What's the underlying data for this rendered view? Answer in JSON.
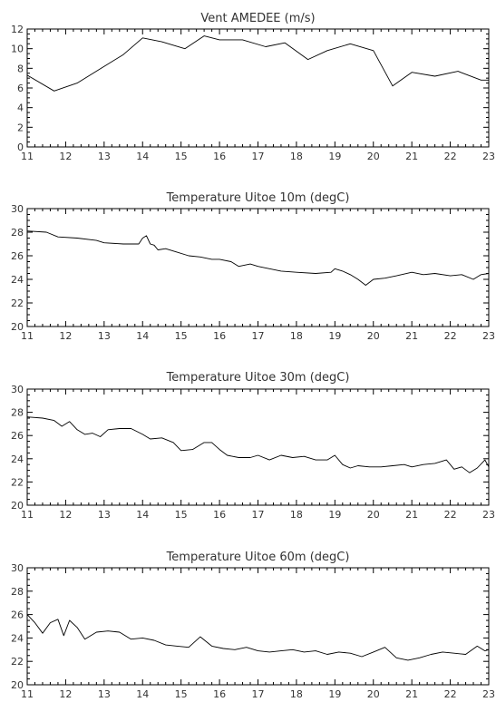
{
  "chart_data": [
    {
      "type": "line",
      "title": "Vent AMEDEE (m/s)",
      "xlabel": "",
      "ylabel": "",
      "xlim": [
        11,
        23
      ],
      "ylim": [
        0,
        12
      ],
      "xticks": [
        "11",
        "12",
        "13",
        "14",
        "15",
        "16",
        "17",
        "18",
        "19",
        "20",
        "21",
        "22",
        "23"
      ],
      "yticks": [
        "0",
        "2",
        "4",
        "6",
        "8",
        "10",
        "12"
      ],
      "grid": false,
      "series": [
        {
          "x": [
            11.0,
            11.7,
            12.3,
            13.0,
            13.5,
            14.0,
            14.5,
            15.1,
            15.6,
            16.0,
            16.6,
            17.2,
            17.7,
            18.3,
            18.8,
            19.4,
            20.0,
            20.5,
            21.0,
            21.6,
            22.2,
            22.8,
            23.0
          ],
          "y": [
            7.3,
            5.7,
            6.5,
            8.2,
            9.4,
            11.1,
            10.7,
            10.0,
            11.3,
            10.9,
            10.9,
            10.2,
            10.6,
            8.9,
            9.8,
            10.5,
            9.8,
            6.2,
            7.6,
            7.2,
            7.7,
            6.8,
            6.8
          ]
        }
      ]
    },
    {
      "type": "line",
      "title": "Temperature Uitoe 10m (degC)",
      "xlabel": "",
      "ylabel": "",
      "xlim": [
        11,
        23
      ],
      "ylim": [
        20,
        30
      ],
      "xticks": [
        "11",
        "12",
        "13",
        "14",
        "15",
        "16",
        "17",
        "18",
        "19",
        "20",
        "21",
        "22",
        "23"
      ],
      "yticks": [
        "20",
        "22",
        "24",
        "26",
        "28",
        "30"
      ],
      "grid": false,
      "series": [
        {
          "x": [
            11.0,
            11.5,
            11.8,
            12.3,
            12.8,
            13.0,
            13.5,
            13.9,
            14.0,
            14.1,
            14.2,
            14.3,
            14.4,
            14.6,
            14.9,
            15.2,
            15.5,
            15.8,
            16.0,
            16.3,
            16.5,
            16.8,
            17.0,
            17.3,
            17.6,
            18.0,
            18.5,
            18.9,
            19.0,
            19.2,
            19.4,
            19.6,
            19.8,
            20.0,
            20.3,
            20.6,
            21.0,
            21.3,
            21.6,
            22.0,
            22.3,
            22.6,
            22.8,
            23.0
          ],
          "y": [
            28.1,
            28.0,
            27.6,
            27.5,
            27.3,
            27.1,
            27.0,
            27.0,
            27.5,
            27.7,
            27.0,
            26.9,
            26.5,
            26.6,
            26.3,
            26.0,
            25.9,
            25.7,
            25.7,
            25.5,
            25.1,
            25.3,
            25.1,
            24.9,
            24.7,
            24.6,
            24.5,
            24.6,
            24.9,
            24.7,
            24.4,
            24.0,
            23.5,
            24.0,
            24.1,
            24.3,
            24.6,
            24.4,
            24.5,
            24.3,
            24.4,
            24.0,
            24.4,
            24.5
          ]
        }
      ]
    },
    {
      "type": "line",
      "title": "Temperature Uitoe 30m (degC)",
      "xlabel": "",
      "ylabel": "",
      "xlim": [
        11,
        23
      ],
      "ylim": [
        20,
        30
      ],
      "xticks": [
        "11",
        "12",
        "13",
        "14",
        "15",
        "16",
        "17",
        "18",
        "19",
        "20",
        "21",
        "22",
        "23"
      ],
      "yticks": [
        "20",
        "22",
        "24",
        "26",
        "28",
        "30"
      ],
      "grid": false,
      "series": [
        {
          "x": [
            11.0,
            11.4,
            11.7,
            11.9,
            12.1,
            12.3,
            12.5,
            12.7,
            12.9,
            13.1,
            13.4,
            13.7,
            14.0,
            14.2,
            14.5,
            14.8,
            15.0,
            15.3,
            15.6,
            15.8,
            16.0,
            16.2,
            16.5,
            16.8,
            17.0,
            17.3,
            17.6,
            17.9,
            18.2,
            18.5,
            18.8,
            19.0,
            19.2,
            19.4,
            19.6,
            19.9,
            20.2,
            20.5,
            20.8,
            21.0,
            21.3,
            21.6,
            21.9,
            22.1,
            22.3,
            22.5,
            22.7,
            22.9,
            23.0
          ],
          "y": [
            27.6,
            27.5,
            27.3,
            26.8,
            27.2,
            26.5,
            26.1,
            26.2,
            25.9,
            26.5,
            26.6,
            26.6,
            26.1,
            25.7,
            25.8,
            25.4,
            24.7,
            24.8,
            25.4,
            25.4,
            24.8,
            24.3,
            24.1,
            24.1,
            24.3,
            23.9,
            24.3,
            24.1,
            24.2,
            23.9,
            23.9,
            24.3,
            23.5,
            23.2,
            23.4,
            23.3,
            23.3,
            23.4,
            23.5,
            23.3,
            23.5,
            23.6,
            23.9,
            23.1,
            23.3,
            22.8,
            23.2,
            23.9,
            23.3
          ]
        }
      ]
    },
    {
      "type": "line",
      "title": "Temperature Uitoe 60m (degC)",
      "xlabel": "",
      "ylabel": "",
      "xlim": [
        11,
        23
      ],
      "ylim": [
        20,
        30
      ],
      "xticks": [
        "11",
        "12",
        "13",
        "14",
        "15",
        "16",
        "17",
        "18",
        "19",
        "20",
        "21",
        "22",
        "23"
      ],
      "yticks": [
        "20",
        "22",
        "24",
        "26",
        "28",
        "30"
      ],
      "grid": false,
      "series": [
        {
          "x": [
            11.0,
            11.2,
            11.4,
            11.6,
            11.8,
            11.95,
            12.1,
            12.3,
            12.5,
            12.8,
            13.1,
            13.4,
            13.7,
            14.0,
            14.3,
            14.6,
            14.9,
            15.2,
            15.5,
            15.8,
            16.1,
            16.4,
            16.7,
            17.0,
            17.3,
            17.6,
            17.9,
            18.2,
            18.5,
            18.8,
            19.1,
            19.4,
            19.7,
            20.0,
            20.3,
            20.6,
            20.9,
            21.2,
            21.5,
            21.8,
            22.1,
            22.4,
            22.7,
            22.9,
            23.0
          ],
          "y": [
            26.0,
            25.3,
            24.4,
            25.3,
            25.6,
            24.2,
            25.5,
            24.9,
            23.9,
            24.5,
            24.6,
            24.5,
            23.9,
            24.0,
            23.8,
            23.4,
            23.3,
            23.2,
            24.1,
            23.3,
            23.1,
            23.0,
            23.2,
            22.9,
            22.8,
            22.9,
            23.0,
            22.8,
            22.9,
            22.6,
            22.8,
            22.7,
            22.4,
            22.8,
            23.2,
            22.3,
            22.1,
            22.3,
            22.6,
            22.8,
            22.7,
            22.6,
            23.3,
            22.9,
            23.0
          ]
        }
      ]
    }
  ]
}
